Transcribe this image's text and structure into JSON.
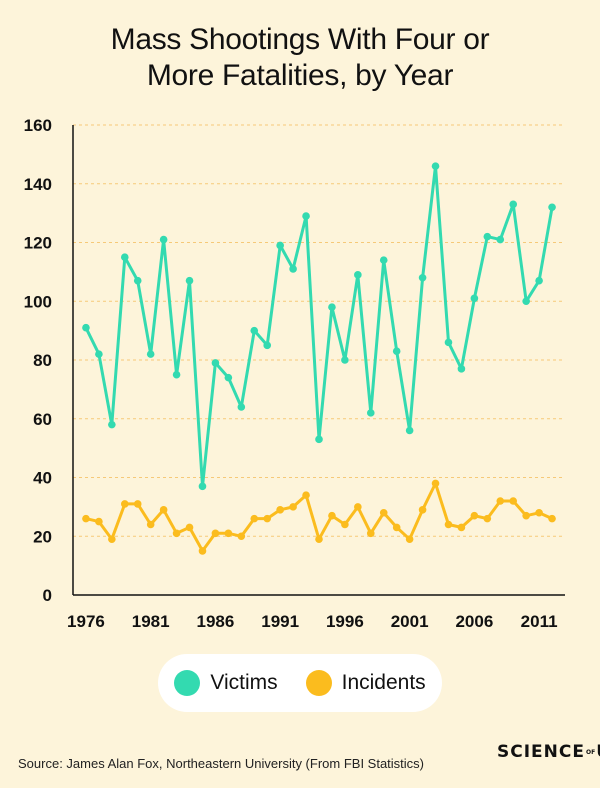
{
  "title_line1": "Mass Shootings With Four or",
  "title_line2": "More Fatalities, by Year",
  "source": "Source: James Alan Fox, Northeastern University (From FBI Statistics)",
  "brand": {
    "part1": "SCIENCE",
    "of": "OF",
    "part2": "US"
  },
  "colors": {
    "victims": "#33dab0",
    "incidents": "#fbbc1e",
    "background": "#fdf4da",
    "grid": "#f6c978"
  },
  "chart_data": {
    "type": "line",
    "title": "Mass Shootings With Four or More Fatalities, by Year",
    "xlabel": "",
    "ylabel": "",
    "x": [
      1976,
      1977,
      1978,
      1979,
      1980,
      1981,
      1982,
      1983,
      1984,
      1985,
      1986,
      1987,
      1988,
      1989,
      1990,
      1991,
      1992,
      1993,
      1994,
      1995,
      1996,
      1997,
      1998,
      1999,
      2000,
      2001,
      2002,
      2003,
      2004,
      2005,
      2006,
      2007,
      2008,
      2009,
      2010,
      2011,
      2012
    ],
    "xticks": [
      1976,
      1981,
      1986,
      1991,
      1996,
      2001,
      2006,
      2011
    ],
    "yticks": [
      0,
      20,
      40,
      60,
      80,
      100,
      120,
      140,
      160
    ],
    "ylim": [
      0,
      160
    ],
    "grid": true,
    "legend_position": "bottom",
    "series": [
      {
        "name": "Victims",
        "values": [
          91,
          82,
          58,
          115,
          107,
          82,
          121,
          75,
          107,
          37,
          79,
          74,
          64,
          90,
          85,
          119,
          111,
          129,
          53,
          98,
          80,
          109,
          62,
          114,
          83,
          56,
          108,
          146,
          86,
          77,
          101,
          122,
          121,
          133,
          100,
          107,
          132
        ]
      },
      {
        "name": "Incidents",
        "values": [
          26,
          25,
          19,
          31,
          31,
          24,
          29,
          21,
          23,
          15,
          21,
          21,
          20,
          26,
          26,
          29,
          30,
          34,
          19,
          27,
          24,
          30,
          21,
          28,
          23,
          19,
          29,
          38,
          24,
          23,
          27,
          26,
          32,
          32,
          27,
          28,
          26
        ]
      }
    ]
  }
}
